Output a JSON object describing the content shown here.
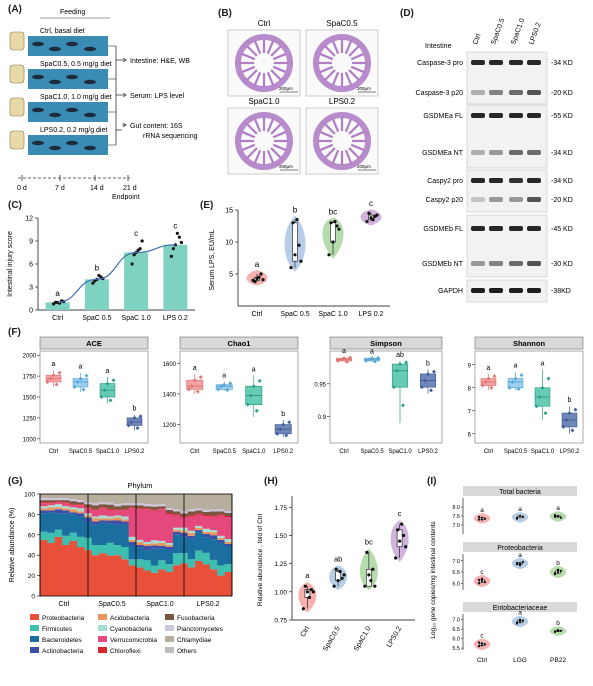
{
  "panels": {
    "A": {
      "label": "(A)",
      "header": "Feeding",
      "groups": [
        "Ctrl, basal diet",
        "SpaC0.5, 0.5 mg/g diet",
        "SpaC1.0, 1.0 mg/g diet",
        "LPS0.2, 0.2 mg/g diet"
      ],
      "outcomes": [
        "Intestine: H&E, WB",
        "Serum: LPS level",
        "Gut content: 16S",
        "rRNA sequencing"
      ],
      "timeline": [
        "0 d",
        "7 d",
        "14 d",
        "21 d"
      ],
      "endpoint": "Endpoint"
    },
    "B": {
      "label": "(B)",
      "images": [
        "Ctrl",
        "SpaC0.5",
        "SpaC1.0",
        "LPS0.2"
      ],
      "scale": "200μm"
    },
    "C": {
      "label": "(C)",
      "chart_data": {
        "type": "bar",
        "categories": [
          "Ctrl",
          "SpaC 0.5",
          "SpaC 1.0",
          "LPS 0.2"
        ],
        "values": [
          1.0,
          4.0,
          7.5,
          8.5
        ],
        "points": [
          [
            0.8,
            1.0,
            1.2,
            1.0,
            0.9,
            1.1
          ],
          [
            3.5,
            4.0,
            4.3,
            3.8,
            4.5,
            4.1
          ],
          [
            6.0,
            7.5,
            8.0,
            7.2,
            7.8,
            9.0
          ],
          [
            7.0,
            8.5,
            9.5,
            8.0,
            10.0,
            8.8
          ]
        ],
        "letters": [
          "a",
          "b",
          "c",
          "c"
        ],
        "ylabel": "Intestinal injury score",
        "ylim": [
          0,
          12
        ],
        "yticks": [
          0,
          3,
          6,
          9,
          12
        ],
        "bar_color": "#7dd3c0"
      }
    },
    "D": {
      "label": "(D)",
      "header_left": "Intestine",
      "lanes": [
        "Ctrl",
        "SpaC0.5",
        "SpaC1.0",
        "LPS0.2"
      ],
      "blots": [
        {
          "left": "Caspase-3 pro",
          "right": "34 KD"
        },
        {
          "left": "Caspase-3 p20",
          "right": "20 KD"
        },
        {
          "left": "GSDMEa FL",
          "right": "55 KD"
        },
        {
          "left": "GSDMEa NT",
          "right": "34 KD"
        },
        {
          "left": "Caspy2 pro",
          "right": "34 KD"
        },
        {
          "left": "Caspy2 p20",
          "right": "20 KD"
        },
        {
          "left": "GSDMEb FL",
          "right": "45 KD"
        },
        {
          "left": "GSDMEb NT",
          "right": "30 KD"
        },
        {
          "left": "GAPDH",
          "right": "38KD"
        }
      ]
    },
    "E": {
      "label": "(E)",
      "chart_data": {
        "type": "violin",
        "categories": [
          "Ctrl",
          "SpaC 0.5",
          "SpaC 1.0",
          "LPS 0.2"
        ],
        "colors": [
          "#f4a3a3",
          "#a9c4e0",
          "#a9d6a0",
          "#c9a6d6"
        ],
        "points": [
          [
            4.0,
            4.3,
            5.0,
            3.8,
            4.5,
            4.1
          ],
          [
            6.0,
            8.0,
            9.5,
            13.0,
            13.5,
            7.0
          ],
          [
            8.0,
            10.0,
            12.5,
            13.0,
            13.2,
            12.0
          ],
          [
            13.2,
            13.8,
            14.0,
            14.5,
            13.5,
            14.2
          ]
        ],
        "letters": [
          "a",
          "b",
          "bc",
          "c"
        ],
        "ylabel": "Serum LPS, EU/mL",
        "ylim": [
          0,
          15
        ],
        "yticks": [
          5,
          10,
          15
        ]
      }
    },
    "F": {
      "label": "(F)",
      "chart_data": [
        {
          "type": "box",
          "title": "ACE",
          "categories": [
            "Ctrl",
            "SpaC0.5",
            "SpaC1.0",
            "LPS0.2"
          ],
          "yticks": [
            1000,
            1250,
            1500,
            1750,
            2000
          ],
          "ylim": [
            950,
            2050
          ],
          "boxes": [
            [
              1620,
              1680,
              1720,
              1760,
              1820
            ],
            [
              1560,
              1620,
              1680,
              1720,
              1790
            ],
            [
              1420,
              1500,
              1580,
              1660,
              1740
            ],
            [
              1100,
              1160,
              1200,
              1250,
              1290
            ]
          ],
          "letters": [
            "a",
            "a",
            "a",
            "b"
          ]
        },
        {
          "type": "box",
          "title": "Chao1",
          "categories": [
            "Ctrl",
            "SpaC0.5",
            "SpaC1.0",
            "LPS0.2"
          ],
          "yticks": [
            1200,
            1400,
            1600
          ],
          "ylim": [
            1080,
            1680
          ],
          "boxes": [
            [
              1400,
              1430,
              1450,
              1490,
              1530
            ],
            [
              1420,
              1430,
              1450,
              1460,
              1480
            ],
            [
              1250,
              1330,
              1390,
              1450,
              1520
            ],
            [
              1120,
              1140,
              1170,
              1200,
              1230
            ]
          ],
          "letters": [
            "a",
            "a",
            "a",
            "b"
          ]
        },
        {
          "type": "box",
          "title": "Simpson",
          "categories": [
            "Ctrl",
            "SpaC0.5",
            "SpaC1.0",
            "LPS0.2"
          ],
          "yticks": [
            0.9,
            0.95
          ],
          "ylim": [
            0.86,
            1.0
          ],
          "boxes": [
            [
              0.982,
              0.985,
              0.987,
              0.989,
              0.991
            ],
            [
              0.983,
              0.985,
              0.987,
              0.989,
              0.99
            ],
            [
              0.89,
              0.945,
              0.97,
              0.98,
              0.985
            ],
            [
              0.935,
              0.945,
              0.955,
              0.965,
              0.972
            ]
          ],
          "letters": [
            "a",
            "a",
            "ab",
            "b"
          ]
        },
        {
          "type": "box",
          "title": "Shannon",
          "categories": [
            "Ctrl",
            "SpaC0.5",
            "SpaC1.0",
            "LPS0.2"
          ],
          "yticks": [
            6,
            7,
            8,
            9
          ],
          "ylim": [
            5.6,
            9.6
          ],
          "boxes": [
            [
              7.9,
              8.1,
              8.25,
              8.4,
              8.6
            ],
            [
              7.9,
              8.0,
              8.25,
              8.4,
              8.7
            ],
            [
              6.6,
              7.2,
              7.6,
              8.0,
              8.8
            ],
            [
              6.0,
              6.3,
              6.6,
              6.9,
              7.2
            ]
          ],
          "letters": [
            "a",
            "a",
            "a",
            "b"
          ]
        }
      ],
      "box_colors": [
        "#f4a3a3",
        "#9bd0f0",
        "#66cdb4",
        "#6f87b8"
      ],
      "box_edges": [
        "#e07575",
        "#5aa7d6",
        "#2e9f87",
        "#435d99"
      ]
    },
    "G": {
      "label": "(G)",
      "chart_data": {
        "type": "bar",
        "title": "Phylum",
        "groups": [
          "Ctrl",
          "SpaC0.5",
          "SpaC1.0",
          "LPS0.2"
        ],
        "ylabel": "Relative abundance (%)",
        "yticks": [
          0,
          20,
          40,
          60,
          80,
          100
        ],
        "series": [
          {
            "name": "Proteobacteria",
            "color": "#e8503a",
            "values": [
              55,
              52,
              58,
              50,
              54,
              48,
              45,
              40,
              42,
              38,
              40,
              36,
              30,
              28,
              25,
              22,
              26,
              24,
              30,
              32,
              28,
              34,
              30,
              26,
              20,
              24
            ]
          },
          {
            "name": "Firmicutes",
            "color": "#3fbfb0",
            "values": [
              8,
              10,
              7,
              9,
              8,
              10,
              12,
              10,
              8,
              12,
              10,
              12,
              6,
              8,
              10,
              7,
              9,
              8,
              12,
              10,
              8,
              10,
              11,
              9,
              10,
              8
            ]
          },
          {
            "name": "Bacteroidetes",
            "color": "#1a6fa0",
            "values": [
              18,
              20,
              16,
              22,
              18,
              20,
              16,
              20,
              22,
              18,
              20,
              22,
              14,
              12,
              10,
              16,
              12,
              14,
              18,
              16,
              20,
              18,
              15,
              20,
              22,
              18
            ]
          },
          {
            "name": "Actinobacteria",
            "color": "#3b4fa8",
            "values": [
              3,
              2,
              4,
              3,
              2,
              3,
              4,
              3,
              2,
              3,
              4,
              3,
              3,
              2,
              4,
              3,
              2,
              3,
              3,
              4,
              3,
              2,
              3,
              4,
              3,
              2
            ]
          },
          {
            "name": "Acidobacteria",
            "color": "#e9975a",
            "values": [
              2,
              3,
              2,
              2,
              3,
              2,
              2,
              3,
              2,
              2,
              3,
              2,
              2,
              3,
              2,
              2,
              3,
              2,
              2,
              2,
              3,
              2,
              2,
              3,
              2,
              2
            ]
          },
          {
            "name": "Cyanobacteria",
            "color": "#a8ddd5",
            "values": [
              2,
              2,
              3,
              2,
              2,
              3,
              2,
              2,
              3,
              2,
              2,
              3,
              3,
              2,
              2,
              3,
              2,
              2,
              2,
              3,
              2,
              2,
              3,
              2,
              2,
              3
            ]
          },
          {
            "name": "Verrucomicrobia",
            "color": "#e5487c",
            "values": [
              3,
              2,
              2,
              3,
              2,
              3,
              5,
              6,
              7,
              6,
              5,
              6,
              28,
              30,
              32,
              28,
              31,
              29,
              12,
              10,
              14,
              11,
              12,
              13,
              20,
              22
            ]
          },
          {
            "name": "Chloroflexi",
            "color": "#d9232a",
            "values": [
              1,
              1,
              1,
              1,
              1,
              1,
              1,
              1,
              1,
              1,
              1,
              1,
              1,
              1,
              1,
              1,
              1,
              1,
              1,
              1,
              1,
              1,
              1,
              1,
              1,
              1
            ]
          },
          {
            "name": "Fusobacteria",
            "color": "#7a5640",
            "values": [
              2,
              2,
              1,
              2,
              3,
              2,
              3,
              4,
              3,
              4,
              3,
              4,
              2,
              3,
              2,
              3,
              2,
              3,
              3,
              3,
              4,
              3,
              3,
              4,
              3,
              3
            ]
          },
          {
            "name": "Planctomycetes",
            "color": "#ccc7df",
            "values": [
              2,
              2,
              2,
              2,
              2,
              2,
              2,
              2,
              2,
              2,
              2,
              2,
              2,
              2,
              2,
              2,
              2,
              2,
              2,
              2,
              2,
              2,
              2,
              2,
              2,
              2
            ]
          },
          {
            "name": "Chlamydiae",
            "color": "#b7ae9e",
            "values": [
              4,
              4,
              4,
              4,
              5,
              6,
              8,
              9,
              8,
              8,
              10,
              9,
              9,
              9,
              10,
              10,
              10,
              14,
              15,
              17,
              15,
              14,
              15,
              15,
              15,
              17
            ]
          }
        ],
        "legend": [
          "Proteobacteria",
          "Firmicutes",
          "Bacteroidetes",
          "Actinobacteria",
          "Acidobacteria",
          "Cyanobacteria",
          "Verrucomicrobia",
          "Chloroflexi",
          "Fusobacteria",
          "Planctomycetes",
          "Chlamydiae",
          "Others"
        ],
        "legend_colors": [
          "#e8503a",
          "#3fbfb0",
          "#1a6fa0",
          "#3b4fa8",
          "#e9975a",
          "#a8ddd5",
          "#e5487c",
          "#d9232a",
          "#7a5640",
          "#ccc7df",
          "#b7ae9e",
          "#bdbdbd"
        ]
      }
    },
    "H": {
      "label": "(H)",
      "chart_data": {
        "type": "violin",
        "categories": [
          "Ctrl",
          "SpaC0.5",
          "SpaC1.0",
          "LPS0.2"
        ],
        "colors": [
          "#f4a3a3",
          "#a9c4e0",
          "#a9d6a0",
          "#c9a6d6"
        ],
        "points": [
          [
            0.85,
            1.0,
            1.02,
            1.05,
            0.95,
            1.0
          ],
          [
            1.05,
            1.1,
            1.12,
            1.2,
            1.18,
            1.15
          ],
          [
            1.05,
            1.15,
            1.2,
            1.35,
            1.1,
            1.05
          ],
          [
            1.3,
            1.45,
            1.5,
            1.55,
            1.6,
            1.4
          ]
        ],
        "letters": [
          "a",
          "ab",
          "bc",
          "c"
        ],
        "ylabel": "Relative abundance , fold of Ctrl",
        "ylim": [
          0.75,
          1.85
        ],
        "yticks": [
          0.75,
          1.0,
          1.25,
          1.5,
          1.75
        ]
      }
    },
    "I": {
      "label": "(I)",
      "chart_data": [
        {
          "type": "violin",
          "title": "Total bacteria",
          "categories": [
            "Ctrl",
            "LGG",
            "PB22"
          ],
          "ylim": [
            6.5,
            8.5
          ],
          "yticks": [
            7.0,
            7.5,
            8.0
          ],
          "points": [
            [
              7.3,
              7.4,
              7.35,
              7.45,
              7.3
            ],
            [
              7.4,
              7.5,
              7.45,
              7.35,
              7.5
            ],
            [
              7.45,
              7.5,
              7.4,
              7.55,
              7.48
            ]
          ],
          "letters": [
            "a",
            "a",
            "a"
          ]
        },
        {
          "type": "violin",
          "title": "Proteobacteria",
          "categories": [
            "Ctrl",
            "LGG",
            "PB22"
          ],
          "ylim": [
            5.7,
            7.3
          ],
          "yticks": [
            6.0,
            6.5,
            7.0
          ],
          "points": [
            [
              6.0,
              6.1,
              6.05,
              6.15,
              6.2
            ],
            [
              6.85,
              6.9,
              6.95,
              6.9,
              6.8
            ],
            [
              6.4,
              6.5,
              6.55,
              6.45,
              6.6
            ]
          ],
          "letters": [
            "c",
            "a",
            "b"
          ]
        },
        {
          "type": "violin",
          "title": "Entobacteriaceae",
          "categories": [
            "Ctrl",
            "LGG",
            "PB22"
          ],
          "ylim": [
            5.4,
            7.3
          ],
          "yticks": [
            5.5,
            6.0,
            6.5,
            7.0
          ],
          "points": [
            [
              5.6,
              5.75,
              5.7,
              5.8,
              5.65
            ],
            [
              6.8,
              6.9,
              6.95,
              6.85,
              7.0
            ],
            [
              6.35,
              6.4,
              6.42,
              6.38,
              6.45
            ]
          ],
          "letters": [
            "c",
            "a",
            "b"
          ]
        }
      ],
      "colors": [
        "#f4a3a3",
        "#a9c4e0",
        "#a9d6a0"
      ],
      "ylabel": "Log₁₀ gene copies/mg intestinal contents"
    }
  }
}
